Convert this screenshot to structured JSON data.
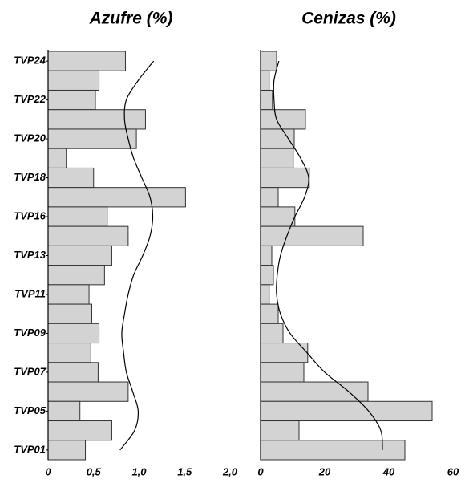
{
  "chart_data": [
    {
      "type": "bar",
      "title": "Azufre (%)",
      "color": "#d3d3d3",
      "categories": [
        "TVP24",
        null,
        "TVP22",
        null,
        "TVP20",
        null,
        "TVP18",
        null,
        "TVP16",
        null,
        "TVP13",
        null,
        "TVP11",
        null,
        "TVP09",
        null,
        "TVP07",
        null,
        "TVP05",
        null,
        "TVP01"
      ],
      "values": [
        0.85,
        0.56,
        0.52,
        1.07,
        0.97,
        0.2,
        0.5,
        1.51,
        0.65,
        0.88,
        0.7,
        0.62,
        0.45,
        0.48,
        0.56,
        0.47,
        0.55,
        0.88,
        0.35,
        0.7,
        0.41
      ],
      "curve": [
        1.16,
        0.99,
        0.86,
        0.84,
        0.88,
        0.94,
        1.03,
        1.12,
        1.15,
        1.12,
        1.04,
        0.94,
        0.88,
        0.84,
        0.81,
        0.83,
        0.86,
        0.93,
        0.99,
        0.95,
        0.79
      ],
      "xlim": [
        0,
        2.0
      ],
      "xticks": [
        0,
        {
          "value": 0.5,
          "label": "0,5"
        },
        {
          "value": 1.0,
          "label": "1,0"
        },
        {
          "value": 1.5,
          "label": "1,5"
        },
        {
          "value": 2.0,
          "label": "2,0"
        }
      ]
    },
    {
      "type": "bar",
      "title": "Cenizas (%)",
      "color": "#d3d3d3",
      "values": [
        5,
        2.7,
        3.7,
        14,
        10.5,
        10.2,
        15.2,
        5.5,
        10.7,
        32,
        3.5,
        4,
        2.7,
        5.5,
        7,
        14.7,
        13.5,
        33.5,
        53.5,
        12,
        45
      ],
      "curve": [
        5.7,
        4.2,
        4.2,
        5,
        8.7,
        12.5,
        15,
        13.7,
        10.7,
        8.2,
        6.2,
        5.2,
        5,
        6.2,
        9.2,
        14.5,
        20,
        27.5,
        33.7,
        37.5,
        38
      ],
      "xlim": [
        0,
        60
      ],
      "xticks": [
        0,
        20,
        40,
        60
      ]
    }
  ]
}
